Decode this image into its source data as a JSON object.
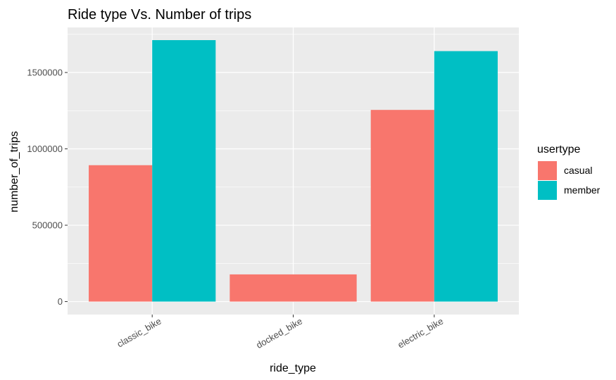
{
  "chart_data": {
    "type": "bar",
    "title": "Ride type Vs. Number of trips",
    "xlabel": "ride_type",
    "ylabel": "number_of_trips",
    "categories": [
      "classic_bike",
      "docked_bike",
      "electric_bike"
    ],
    "series": [
      {
        "name": "casual",
        "color": "#F8766D",
        "values": [
          893000,
          178000,
          1255000
        ]
      },
      {
        "name": "member",
        "color": "#00BFC4",
        "values": [
          1712000,
          null,
          1640000
        ]
      }
    ],
    "y_ticks": [
      0,
      500000,
      1000000,
      1500000
    ],
    "y_tick_labels": [
      "0",
      "500000",
      "1000000",
      "1500000"
    ],
    "ylim": [
      -85000,
      1795000
    ],
    "grid": true,
    "panel_background": "#EBEBEB",
    "legend": {
      "title": "usertype",
      "placement": "right"
    }
  }
}
